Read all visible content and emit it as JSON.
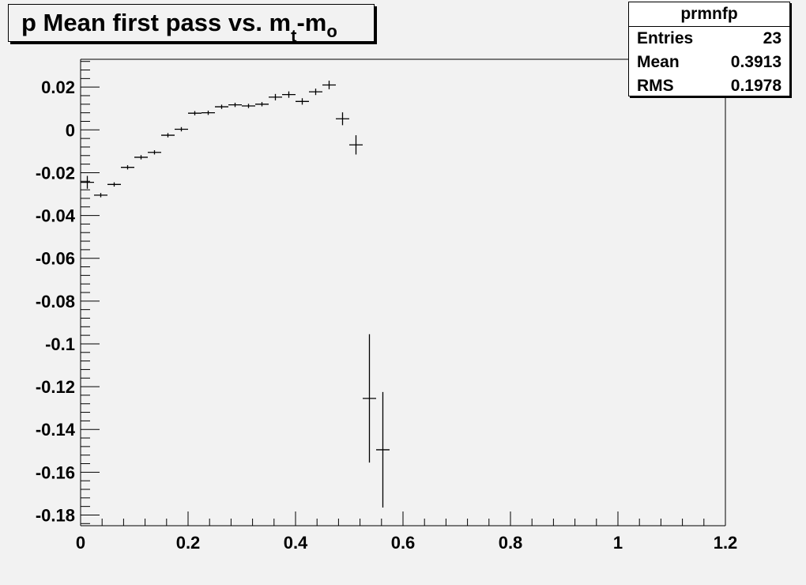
{
  "title": {
    "prefix": "p Mean first pass vs. m",
    "sub1": "t",
    "mid": "-m",
    "sub2": "o"
  },
  "stats": {
    "name": "prmnfp",
    "rows": [
      {
        "label": "Entries",
        "value": "23"
      },
      {
        "label": "Mean",
        "value": "0.3913"
      },
      {
        "label": "RMS",
        "value": "0.1978"
      }
    ]
  },
  "chart_data": {
    "type": "scatter",
    "title": "p Mean first pass vs. m_t-m_o",
    "xlim": [
      0,
      1.2
    ],
    "ylim": [
      -0.185,
      0.033
    ],
    "xticks": [
      0,
      0.2,
      0.4,
      0.6,
      0.8,
      1,
      1.2
    ],
    "xtick_labels": [
      "0",
      "0.2",
      "0.4",
      "0.6",
      "0.8",
      "1",
      "1.2"
    ],
    "yticks": [
      0.02,
      0,
      -0.02,
      -0.04,
      -0.06,
      -0.08,
      -0.1,
      -0.12,
      -0.14,
      -0.16,
      -0.18
    ],
    "ytick_labels": [
      "0.02",
      "0",
      "-0.02",
      "-0.04",
      "-0.06",
      "-0.08",
      "-0.1",
      "-0.12",
      "-0.14",
      "-0.16",
      "-0.18"
    ],
    "bin_half_width": 0.0125,
    "points": [
      {
        "x": 0.0125,
        "y": -0.0245,
        "err": 0.003
      },
      {
        "x": 0.0375,
        "y": -0.0305,
        "err": 0.001
      },
      {
        "x": 0.0625,
        "y": -0.0255,
        "err": 0.001
      },
      {
        "x": 0.0875,
        "y": -0.0175,
        "err": 0.001
      },
      {
        "x": 0.1125,
        "y": -0.0128,
        "err": 0.001
      },
      {
        "x": 0.1375,
        "y": -0.0105,
        "err": 0.001
      },
      {
        "x": 0.1625,
        "y": -0.0025,
        "err": 0.001
      },
      {
        "x": 0.1875,
        "y": 0.0003,
        "err": 0.001
      },
      {
        "x": 0.2125,
        "y": 0.0078,
        "err": 0.001
      },
      {
        "x": 0.2375,
        "y": 0.008,
        "err": 0.001
      },
      {
        "x": 0.2625,
        "y": 0.0108,
        "err": 0.001
      },
      {
        "x": 0.2875,
        "y": 0.0117,
        "err": 0.001
      },
      {
        "x": 0.3125,
        "y": 0.0112,
        "err": 0.001
      },
      {
        "x": 0.3375,
        "y": 0.012,
        "err": 0.001
      },
      {
        "x": 0.3625,
        "y": 0.0153,
        "err": 0.0015
      },
      {
        "x": 0.3875,
        "y": 0.0165,
        "err": 0.0015
      },
      {
        "x": 0.4125,
        "y": 0.0133,
        "err": 0.0015
      },
      {
        "x": 0.4375,
        "y": 0.0178,
        "err": 0.0015
      },
      {
        "x": 0.4625,
        "y": 0.021,
        "err": 0.002
      },
      {
        "x": 0.4875,
        "y": 0.0052,
        "err": 0.003
      },
      {
        "x": 0.5125,
        "y": -0.007,
        "err": 0.0045
      },
      {
        "x": 0.5375,
        "y": -0.1255,
        "err": 0.03
      },
      {
        "x": 0.5625,
        "y": -0.1495,
        "err": 0.027
      }
    ]
  }
}
